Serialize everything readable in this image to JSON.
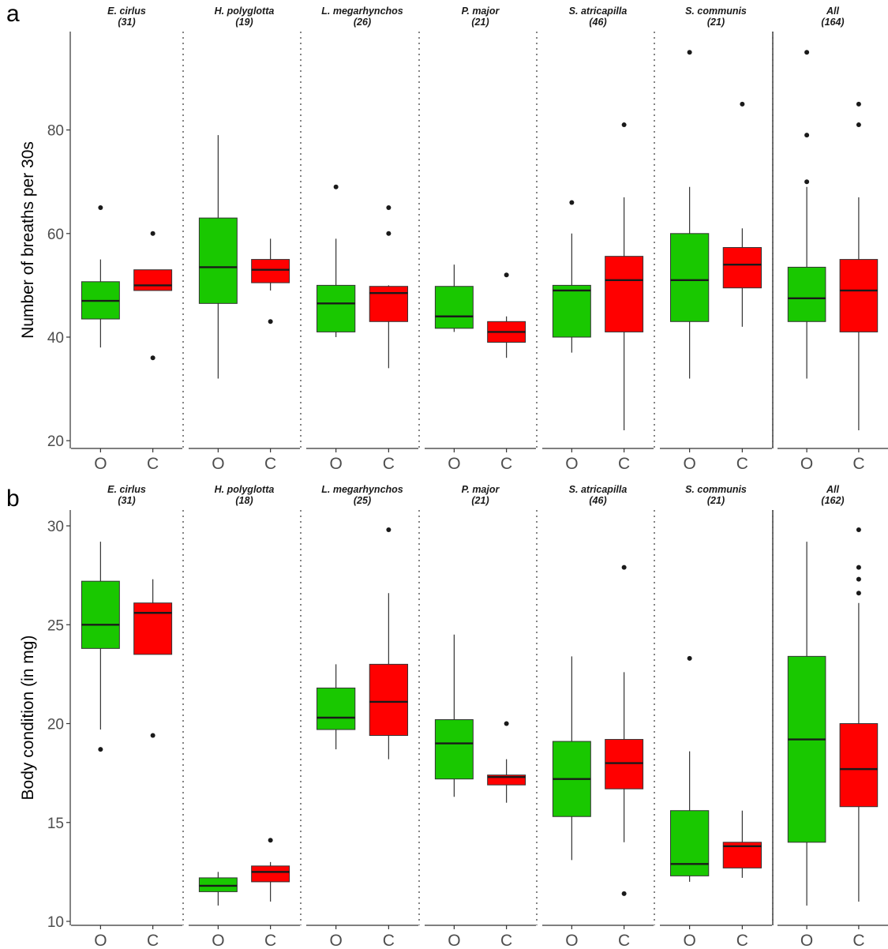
{
  "colors": {
    "O": "#19c800",
    "C": "#ff0000",
    "outline": "#333333",
    "median": "#1a1a1a"
  },
  "chart_data": [
    {
      "panel_label": "a",
      "type": "boxplot",
      "ylabel": "Number of breaths per 30s",
      "ylim": [
        18.5,
        99
      ],
      "yticks": [
        20,
        40,
        60,
        80
      ],
      "x_categories": [
        "O",
        "C"
      ],
      "grid": false,
      "facets": [
        {
          "title": "E. cirlus",
          "n": "(31)",
          "boxes": [
            {
              "group": "O",
              "whisker_low": 38,
              "q1": 43.5,
              "median": 47,
              "q3": 50.7,
              "whisker_high": 55,
              "outliers": [
                65
              ]
            },
            {
              "group": "C",
              "whisker_low": 49,
              "q1": 49,
              "median": 50,
              "q3": 53,
              "whisker_high": 53,
              "outliers": [
                60,
                36
              ]
            }
          ]
        },
        {
          "title": "H. polyglotta",
          "n": "(19)",
          "boxes": [
            {
              "group": "O",
              "whisker_low": 32,
              "q1": 46.5,
              "median": 53.5,
              "q3": 63,
              "whisker_high": 79,
              "outliers": []
            },
            {
              "group": "C",
              "whisker_low": 49,
              "q1": 50.5,
              "median": 53,
              "q3": 55,
              "whisker_high": 59,
              "outliers": [
                43
              ]
            }
          ]
        },
        {
          "title": "L. megarhynchos",
          "n": "(26)",
          "boxes": [
            {
              "group": "O",
              "whisker_low": 40,
              "q1": 41,
              "median": 46.5,
              "q3": 50,
              "whisker_high": 59,
              "outliers": [
                69
              ]
            },
            {
              "group": "C",
              "whisker_low": 34,
              "q1": 43,
              "median": 48.5,
              "q3": 49.8,
              "whisker_high": 50,
              "outliers": [
                65,
                60
              ]
            }
          ]
        },
        {
          "title": "P. major",
          "n": "(21)",
          "boxes": [
            {
              "group": "O",
              "whisker_low": 41,
              "q1": 41.7,
              "median": 44,
              "q3": 49.8,
              "whisker_high": 54,
              "outliers": []
            },
            {
              "group": "C",
              "whisker_low": 36,
              "q1": 39,
              "median": 41,
              "q3": 43,
              "whisker_high": 44,
              "outliers": [
                52
              ]
            }
          ]
        },
        {
          "title": "S. atricapilla",
          "n": "(46)",
          "boxes": [
            {
              "group": "O",
              "whisker_low": 37,
              "q1": 40,
              "median": 49,
              "q3": 50,
              "whisker_high": 60,
              "outliers": [
                66
              ]
            },
            {
              "group": "C",
              "whisker_low": 22,
              "q1": 41,
              "median": 51,
              "q3": 55.6,
              "whisker_high": 67,
              "outliers": [
                81
              ]
            }
          ]
        },
        {
          "title": "S. communis",
          "n": "(21)",
          "boxes": [
            {
              "group": "O",
              "whisker_low": 32,
              "q1": 43,
              "median": 51,
              "q3": 60,
              "whisker_high": 69,
              "outliers": [
                95
              ]
            },
            {
              "group": "C",
              "whisker_low": 42,
              "q1": 49.5,
              "median": 54,
              "q3": 57.3,
              "whisker_high": 61,
              "outliers": [
                85
              ]
            }
          ]
        },
        {
          "title": "All",
          "n": "(164)",
          "boxes": [
            {
              "group": "O",
              "whisker_low": 32,
              "q1": 43,
              "median": 47.5,
              "q3": 53.5,
              "whisker_high": 69,
              "outliers": [
                70,
                79,
                95
              ]
            },
            {
              "group": "C",
              "whisker_low": 22,
              "q1": 41,
              "median": 49,
              "q3": 55,
              "whisker_high": 67,
              "outliers": [
                81,
                85
              ]
            }
          ]
        }
      ]
    },
    {
      "panel_label": "b",
      "type": "boxplot",
      "ylabel": "Body condition (in mg)",
      "ylim": [
        9.8,
        30.8
      ],
      "yticks": [
        10,
        15,
        20,
        25,
        30
      ],
      "x_categories": [
        "O",
        "C"
      ],
      "grid": false,
      "facets": [
        {
          "title": "E. cirlus",
          "n": "(31)",
          "boxes": [
            {
              "group": "O",
              "whisker_low": 19.7,
              "q1": 23.8,
              "median": 25,
              "q3": 27.2,
              "whisker_high": 29.2,
              "outliers": [
                18.7
              ]
            },
            {
              "group": "C",
              "whisker_low": 23.5,
              "q1": 23.5,
              "median": 25.6,
              "q3": 26.1,
              "whisker_high": 27.3,
              "outliers": [
                19.4
              ]
            }
          ]
        },
        {
          "title": "H. polyglotta",
          "n": "(18)",
          "boxes": [
            {
              "group": "O",
              "whisker_low": 10.8,
              "q1": 11.5,
              "median": 11.8,
              "q3": 12.2,
              "whisker_high": 12.5,
              "outliers": []
            },
            {
              "group": "C",
              "whisker_low": 11,
              "q1": 12,
              "median": 12.5,
              "q3": 12.8,
              "whisker_high": 13,
              "outliers": [
                14.1
              ]
            }
          ]
        },
        {
          "title": "L. megarhynchos",
          "n": "(25)",
          "boxes": [
            {
              "group": "O",
              "whisker_low": 18.7,
              "q1": 19.7,
              "median": 20.3,
              "q3": 21.8,
              "whisker_high": 23,
              "outliers": []
            },
            {
              "group": "C",
              "whisker_low": 18.2,
              "q1": 19.4,
              "median": 21.1,
              "q3": 23,
              "whisker_high": 26.6,
              "outliers": [
                29.8
              ]
            }
          ]
        },
        {
          "title": "P. major",
          "n": "(21)",
          "boxes": [
            {
              "group": "O",
              "whisker_low": 16.3,
              "q1": 17.2,
              "median": 19,
              "q3": 20.2,
              "whisker_high": 24.5,
              "outliers": []
            },
            {
              "group": "C",
              "whisker_low": 16,
              "q1": 16.9,
              "median": 17.3,
              "q3": 17.4,
              "whisker_high": 18.2,
              "outliers": [
                20
              ]
            }
          ]
        },
        {
          "title": "S. atricapilla",
          "n": "(46)",
          "boxes": [
            {
              "group": "O",
              "whisker_low": 13.1,
              "q1": 15.3,
              "median": 17.2,
              "q3": 19.1,
              "whisker_high": 23.4,
              "outliers": []
            },
            {
              "group": "C",
              "whisker_low": 14,
              "q1": 16.7,
              "median": 18,
              "q3": 19.2,
              "whisker_high": 22.6,
              "outliers": [
                27.9,
                11.4
              ]
            }
          ]
        },
        {
          "title": "S. communis",
          "n": "(21)",
          "boxes": [
            {
              "group": "O",
              "whisker_low": 12,
              "q1": 12.3,
              "median": 12.9,
              "q3": 15.6,
              "whisker_high": 18.6,
              "outliers": [
                23.3
              ]
            },
            {
              "group": "C",
              "whisker_low": 12.2,
              "q1": 12.7,
              "median": 13.8,
              "q3": 14,
              "whisker_high": 15.6,
              "outliers": []
            }
          ]
        },
        {
          "title": "All",
          "n": "(162)",
          "boxes": [
            {
              "group": "O",
              "whisker_low": 10.8,
              "q1": 14,
              "median": 19.2,
              "q3": 23.4,
              "whisker_high": 29.2,
              "outliers": []
            },
            {
              "group": "C",
              "whisker_low": 11,
              "q1": 15.8,
              "median": 17.7,
              "q3": 20,
              "whisker_high": 26.1,
              "outliers": [
                29.8,
                27.9,
                27.3,
                26.6
              ]
            }
          ]
        }
      ]
    }
  ]
}
